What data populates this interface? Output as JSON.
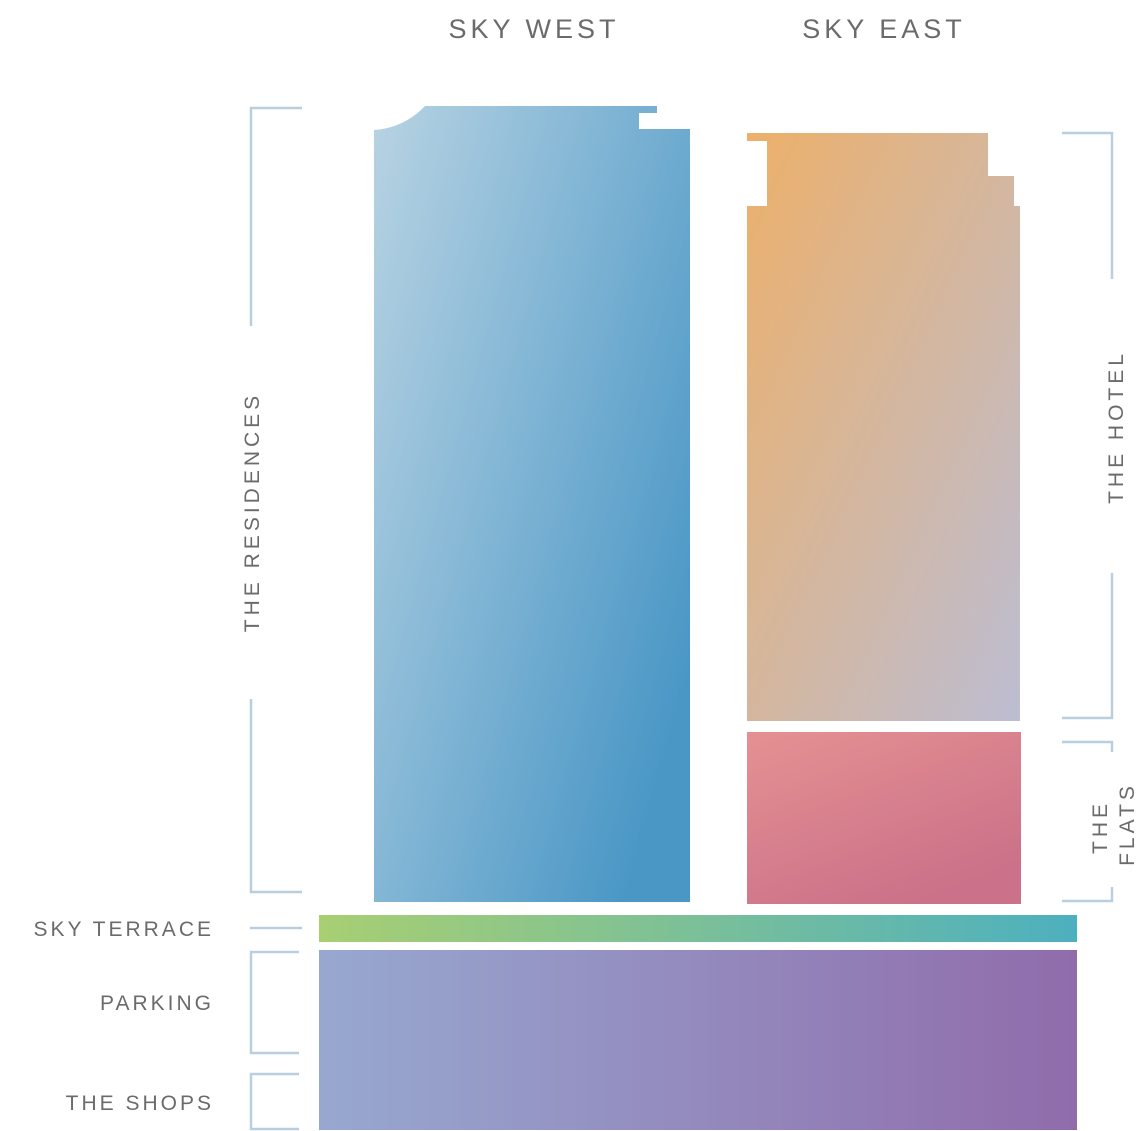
{
  "towers": {
    "west_title": "SKY WEST",
    "east_title": "SKY EAST"
  },
  "sections": {
    "residences": "THE RESIDENCES",
    "hotel": "THE HOTEL",
    "flats_line1": "THE",
    "flats_line2": "FLATS",
    "sky_terrace": "SKY TERRACE",
    "parking": "PARKING",
    "shops": "THE SHOPS"
  },
  "colors": {
    "west_light": "#b8d3e3",
    "west_dark": "#4a97c6",
    "hotel_top": "#edb06a",
    "hotel_bottom": "#bcbdd2",
    "flats_top": "#e59192",
    "flats_bottom": "#cb7189",
    "terrace_left": "#a8cf72",
    "terrace_right": "#4db0bf",
    "podium_left": "#97a8d0",
    "podium_right": "#906cab",
    "bracket": "#b9cfe0",
    "label": "#6b6b6b"
  }
}
